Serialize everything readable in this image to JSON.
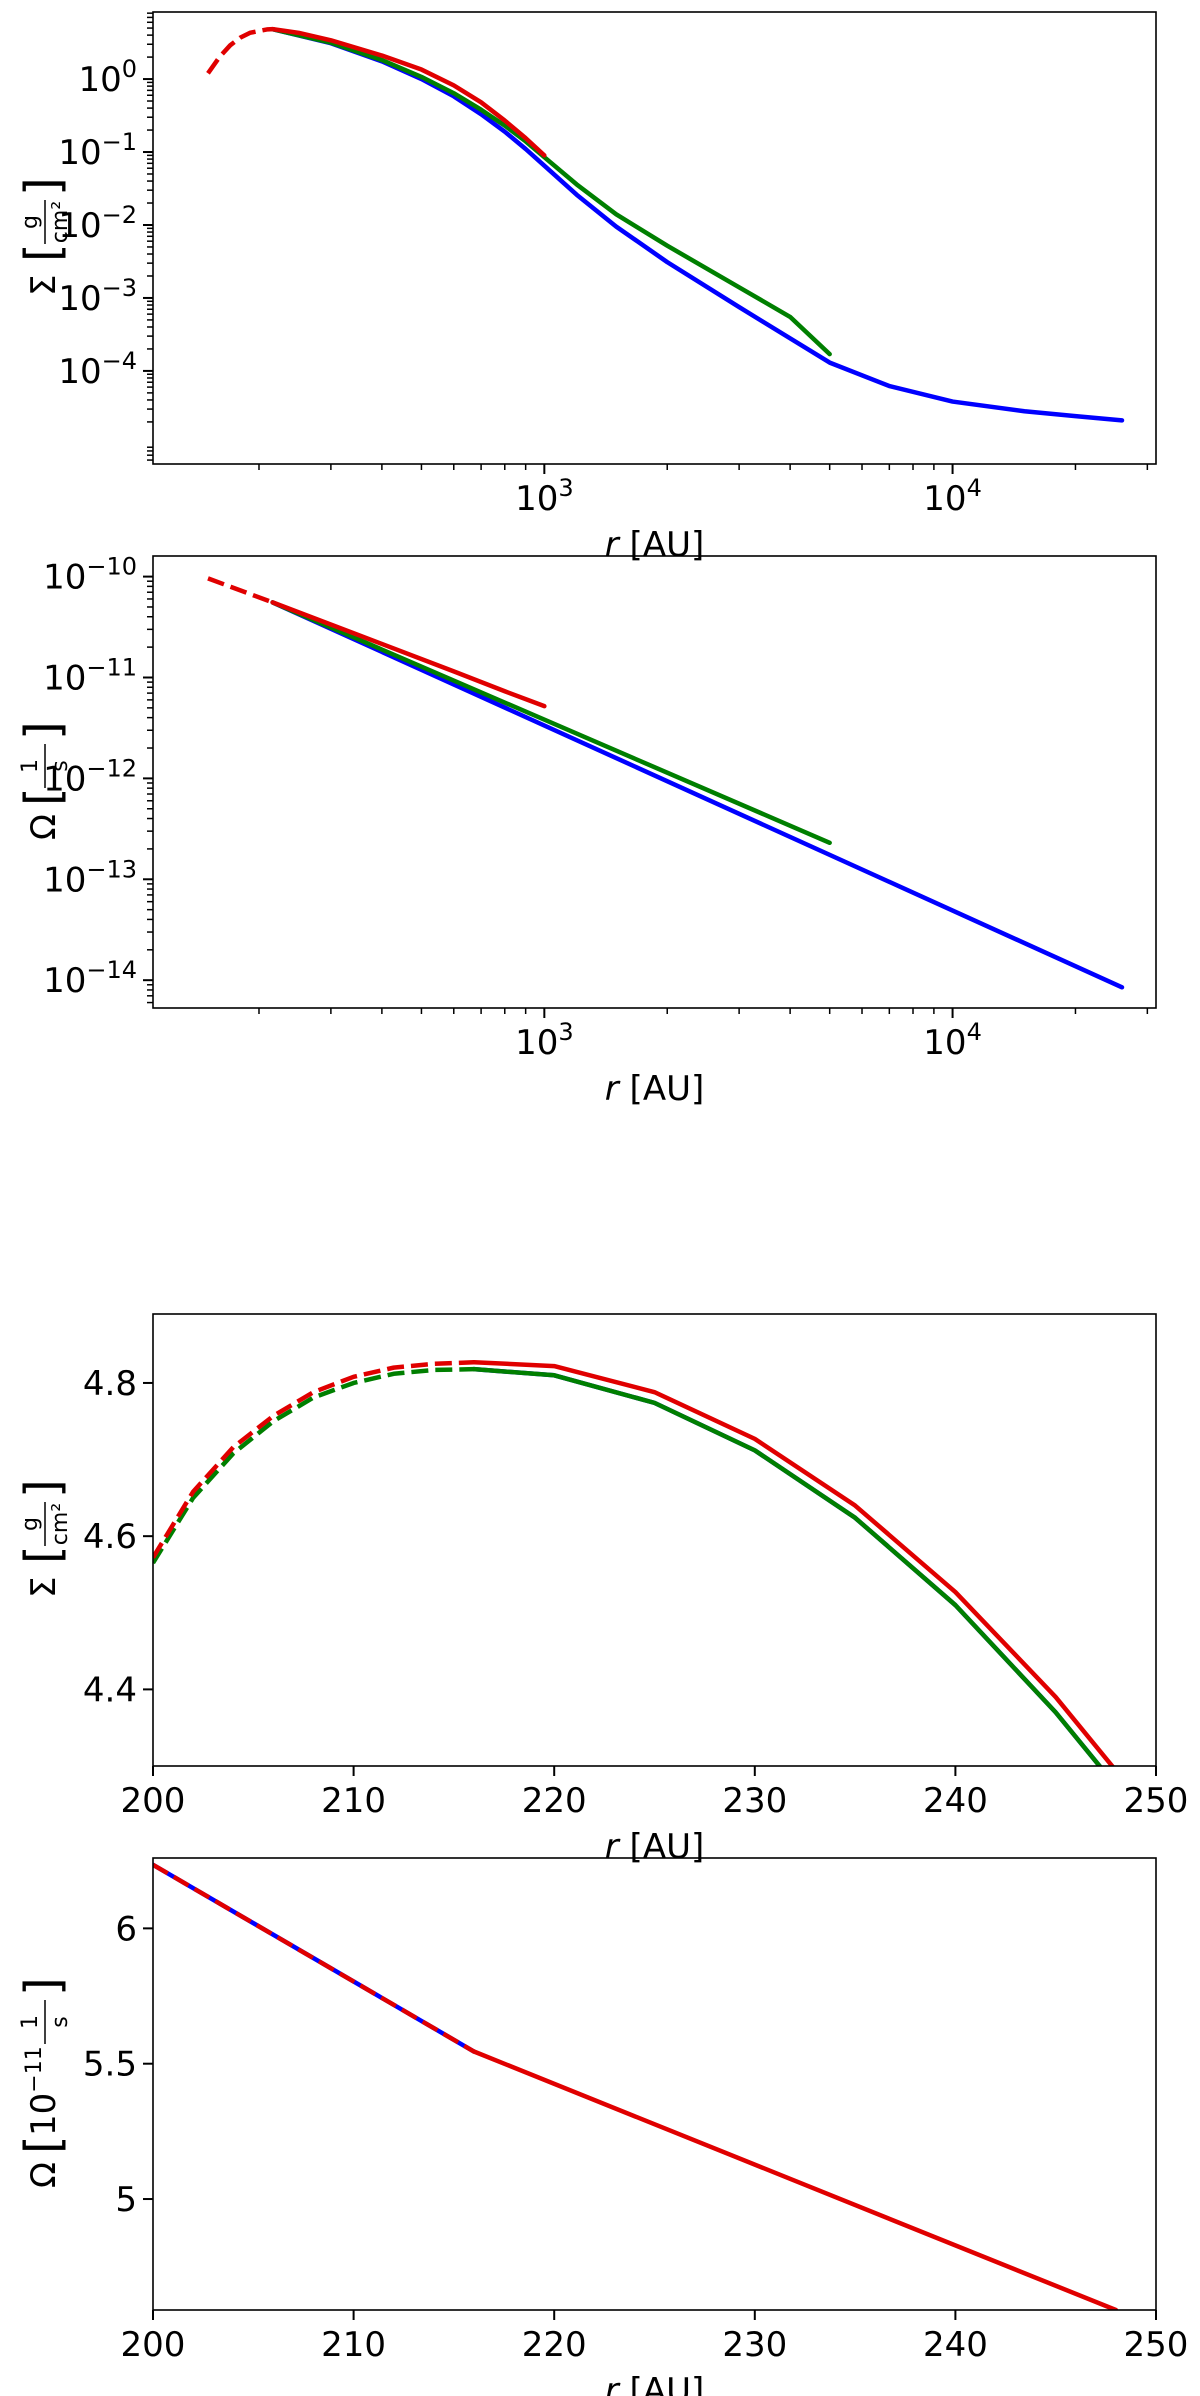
{
  "colors": {
    "series_a": "#0000ff",
    "series_b": "#007f00",
    "series_c": "#e00000",
    "axes": "#000000"
  },
  "chart_data": [
    {
      "id": "p1",
      "type": "line",
      "scale": {
        "x": "log",
        "y": "log"
      },
      "xlim": [
        110,
        31500
      ],
      "ylim": [
        5.3e-06,
        8.3
      ],
      "xlabel_var": "r",
      "xlabel_unit": "[AU]",
      "ylabel_sym": "Σ",
      "ylabel_num": "g",
      "ylabel_den": "cm²",
      "xticks": [
        {
          "value": 1000,
          "base": "10",
          "exp": "3"
        },
        {
          "value": 10000,
          "base": "10",
          "exp": "4"
        }
      ],
      "yticks": [
        {
          "value": 1,
          "base": "10",
          "exp": "0"
        },
        {
          "value": 0.1,
          "base": "10",
          "exp": "−1"
        },
        {
          "value": 0.01,
          "base": "10",
          "exp": "−2"
        },
        {
          "value": 0.001,
          "base": "10",
          "exp": "−3"
        },
        {
          "value": 0.0001,
          "base": "10",
          "exp": "−4"
        }
      ],
      "grid": false,
      "series": [
        {
          "color": "#0000ff",
          "dash": false,
          "x": [
            216,
            300,
            400,
            500,
            600,
            700,
            800,
            900,
            1000,
            1200,
            1500,
            2000,
            3000,
            5000,
            7000,
            10000,
            15000,
            20000,
            26000
          ],
          "y": [
            4.82,
            3.1,
            1.75,
            1.0,
            0.58,
            0.33,
            0.19,
            0.11,
            0.065,
            0.026,
            0.0095,
            0.0031,
            0.00075,
            0.00013,
            6.2e-05,
            3.8e-05,
            2.8e-05,
            2.4e-05,
            2.1e-05
          ]
        },
        {
          "color": "#007f00",
          "dash": false,
          "x": [
            216,
            300,
            400,
            500,
            600,
            700,
            800,
            900,
            1000,
            1200,
            1500,
            2000,
            3000,
            4000,
            5000
          ],
          "y": [
            4.82,
            3.15,
            1.82,
            1.07,
            0.64,
            0.38,
            0.23,
            0.14,
            0.085,
            0.036,
            0.014,
            0.0052,
            0.0014,
            0.00055,
            0.00017
          ]
        },
        {
          "color": "#e00000",
          "dash": true,
          "x": [
            150,
            160,
            170,
            180,
            190,
            200,
            210,
            216
          ],
          "y": [
            1.2,
            2.0,
            2.9,
            3.7,
            4.3,
            4.56,
            4.8,
            4.83
          ]
        },
        {
          "color": "#e00000",
          "dash": false,
          "x": [
            216,
            250,
            300,
            400,
            500,
            600,
            700,
            800,
            900,
            1000
          ],
          "y": [
            4.83,
            4.3,
            3.4,
            2.1,
            1.35,
            0.82,
            0.48,
            0.27,
            0.155,
            0.09
          ]
        }
      ]
    },
    {
      "id": "p2",
      "type": "line",
      "scale": {
        "x": "log",
        "y": "log"
      },
      "xlim": [
        110,
        31500
      ],
      "ylim": [
        5.3e-15,
        1.6e-10
      ],
      "xlabel_var": "r",
      "xlabel_unit": "[AU]",
      "ylabel_sym": "Ω",
      "ylabel_num": "1",
      "ylabel_den": "s",
      "xticks": [
        {
          "value": 1000,
          "base": "10",
          "exp": "3"
        },
        {
          "value": 10000,
          "base": "10",
          "exp": "4"
        }
      ],
      "yticks": [
        {
          "value": 1e-10,
          "base": "10",
          "exp": "−10"
        },
        {
          "value": 1e-11,
          "base": "10",
          "exp": "−11"
        },
        {
          "value": 1e-12,
          "base": "10",
          "exp": "−12"
        },
        {
          "value": 1e-13,
          "base": "10",
          "exp": "−13"
        },
        {
          "value": 1e-14,
          "base": "10",
          "exp": "−14"
        }
      ],
      "grid": false,
      "series": [
        {
          "color": "#0000ff",
          "dash": false,
          "x": [
            216,
            26000
          ],
          "y": [
            5.55e-11,
            8.5e-15
          ]
        },
        {
          "color": "#007f00",
          "dash": false,
          "x": [
            216,
            5000
          ],
          "y": [
            5.55e-11,
            2.3e-13
          ]
        },
        {
          "color": "#e00000",
          "dash": true,
          "x": [
            150,
            216
          ],
          "y": [
            9.6e-11,
            5.55e-11
          ]
        },
        {
          "color": "#e00000",
          "dash": false,
          "x": [
            216,
            400,
            600,
            800,
            1000
          ],
          "y": [
            5.55e-11,
            2.15e-11,
            1.15e-11,
            7.3e-12,
            5.2e-12
          ]
        }
      ]
    },
    {
      "id": "p3",
      "type": "line",
      "scale": {
        "x": "linear",
        "y": "linear"
      },
      "xlim": [
        200,
        250
      ],
      "ylim": [
        4.3,
        4.89
      ],
      "xlabel_var": "r",
      "xlabel_unit": "[AU]",
      "ylabel_sym": "Σ",
      "ylabel_num": "g",
      "ylabel_den": "cm²",
      "xticks": [
        {
          "value": 200,
          "label": "200"
        },
        {
          "value": 210,
          "label": "210"
        },
        {
          "value": 220,
          "label": "220"
        },
        {
          "value": 230,
          "label": "230"
        },
        {
          "value": 240,
          "label": "240"
        },
        {
          "value": 250,
          "label": "250"
        }
      ],
      "yticks": [
        {
          "value": 4.4,
          "label": "4.4"
        },
        {
          "value": 4.6,
          "label": "4.6"
        },
        {
          "value": 4.8,
          "label": "4.8"
        }
      ],
      "grid": false,
      "series": [
        {
          "color": "#0000ff",
          "dash": false,
          "x": [
            216,
            220,
            225,
            230,
            235,
            240,
            245,
            250
          ],
          "y": [
            4.818,
            4.81,
            4.774,
            4.712,
            4.624,
            4.51,
            4.37,
            4.21
          ]
        },
        {
          "color": "#007f00",
          "dash": true,
          "x": [
            200,
            202,
            204,
            206,
            208,
            210,
            212,
            214,
            216
          ],
          "y": [
            4.565,
            4.65,
            4.708,
            4.75,
            4.781,
            4.8,
            4.812,
            4.817,
            4.818
          ]
        },
        {
          "color": "#007f00",
          "dash": false,
          "x": [
            216,
            220,
            225,
            230,
            235,
            240,
            245,
            250
          ],
          "y": [
            4.818,
            4.81,
            4.774,
            4.712,
            4.624,
            4.51,
            4.37,
            4.21
          ]
        },
        {
          "color": "#e00000",
          "dash": true,
          "x": [
            200,
            202,
            204,
            206,
            208,
            210,
            212,
            214,
            216
          ],
          "y": [
            4.572,
            4.658,
            4.716,
            4.757,
            4.788,
            4.808,
            4.82,
            4.825,
            4.827
          ]
        },
        {
          "color": "#e00000",
          "dash": false,
          "x": [
            216,
            220,
            225,
            230,
            235,
            240,
            245,
            250
          ],
          "y": [
            4.827,
            4.822,
            4.788,
            4.727,
            4.64,
            4.527,
            4.39,
            4.23
          ]
        }
      ]
    },
    {
      "id": "p4",
      "type": "line",
      "scale": {
        "x": "linear",
        "y": "linear"
      },
      "xlim": [
        200,
        250
      ],
      "ylim": [
        4.59,
        6.26
      ],
      "xlabel_var": "r",
      "xlabel_unit": "[AU]",
      "ylabel_sym": "Ω",
      "ylabel_pre": "10",
      "ylabel_exp": "−11",
      "ylabel_num": "1",
      "ylabel_den": "s",
      "xticks": [
        {
          "value": 200,
          "label": "200"
        },
        {
          "value": 210,
          "label": "210"
        },
        {
          "value": 220,
          "label": "220"
        },
        {
          "value": 230,
          "label": "230"
        },
        {
          "value": 240,
          "label": "240"
        },
        {
          "value": 250,
          "label": "250"
        }
      ],
      "yticks": [
        {
          "value": 5,
          "label": "5"
        },
        {
          "value": 5.5,
          "label": "5.5"
        },
        {
          "value": 6,
          "label": "6"
        }
      ],
      "grid": false,
      "series": [
        {
          "color": "#0000ff",
          "dash": false,
          "x": [
            200,
            216
          ],
          "y": [
            6.235,
            5.545
          ]
        },
        {
          "color": "#e00000",
          "dash": true,
          "x": [
            200,
            216
          ],
          "y": [
            6.235,
            5.545
          ]
        },
        {
          "color": "#e00000",
          "dash": false,
          "x": [
            216,
            248
          ],
          "y": [
            5.545,
            4.59
          ]
        }
      ]
    }
  ]
}
